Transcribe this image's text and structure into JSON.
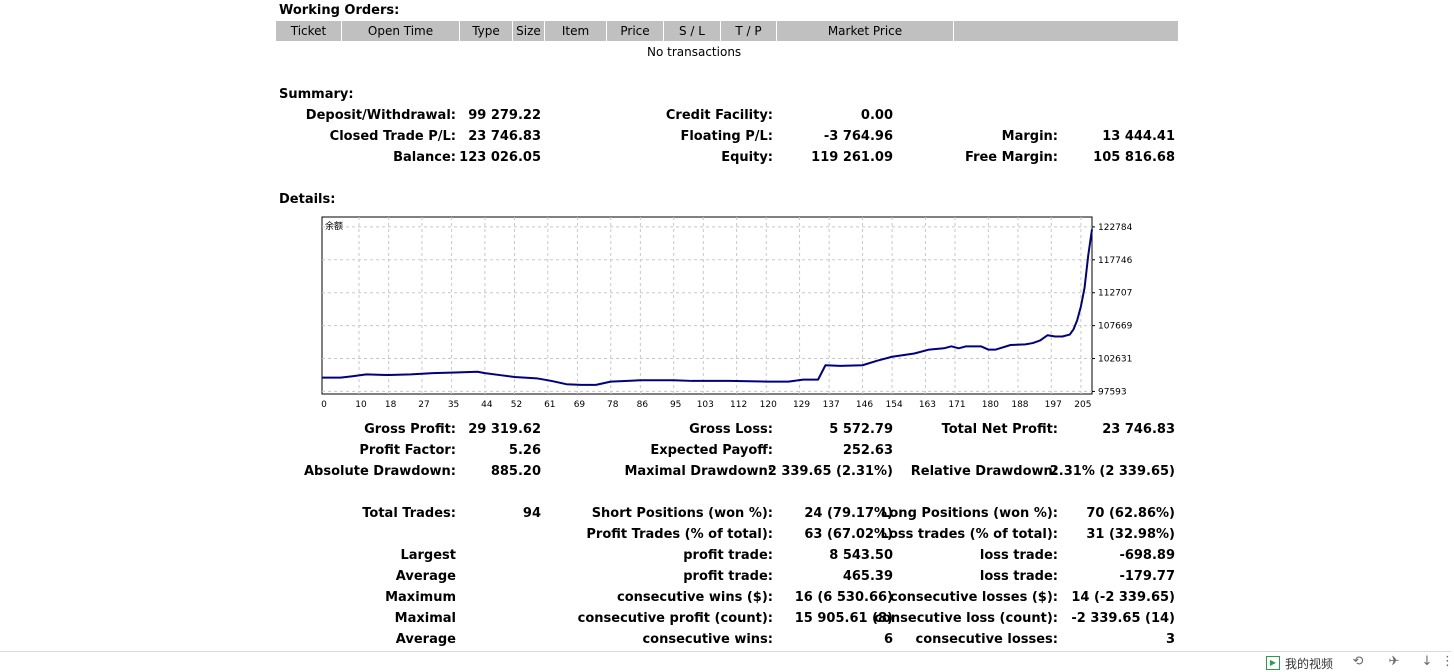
{
  "working_orders": {
    "heading": "Working Orders:",
    "columns": [
      "Ticket",
      "Open Time",
      "Type",
      "Size",
      "Item",
      "Price",
      "S / L",
      "T / P",
      "Market Price",
      ""
    ],
    "empty_message": "No transactions"
  },
  "summary": {
    "heading": "Summary:",
    "rows": [
      [
        {
          "label": "Deposit/Withdrawal:",
          "value": "99 279.22"
        },
        {
          "label": "Credit Facility:",
          "value": "0.00"
        },
        {
          "label": "",
          "value": ""
        }
      ],
      [
        {
          "label": "Closed Trade P/L:",
          "value": "23 746.83"
        },
        {
          "label": "Floating P/L:",
          "value": "-3 764.96"
        },
        {
          "label": "Margin:",
          "value": "13 444.41"
        }
      ],
      [
        {
          "label": "Balance:",
          "value": "123 026.05"
        },
        {
          "label": "Equity:",
          "value": "119 261.09"
        },
        {
          "label": "Free Margin:",
          "value": "105 816.68"
        }
      ]
    ]
  },
  "details": {
    "heading": "Details:",
    "rows": [
      [
        {
          "label": "Gross Profit:",
          "value": "29 319.62"
        },
        {
          "label": "Gross Loss:",
          "value": "5 572.79"
        },
        {
          "label": "Total Net Profit:",
          "value": "23 746.83"
        }
      ],
      [
        {
          "label": "Profit Factor:",
          "value": "5.26"
        },
        {
          "label": "Expected Payoff:",
          "value": "252.63"
        },
        {
          "label": "",
          "value": ""
        }
      ],
      [
        {
          "label": "Absolute Drawdown:",
          "value": "885.20"
        },
        {
          "label": "Maximal Drawdown:",
          "value": "2 339.65 (2.31%)"
        },
        {
          "label": "Relative Drawdown:",
          "value": "2.31% (2 339.65)"
        }
      ],
      [
        {
          "label": "Total Trades:",
          "value": "94"
        },
        {
          "label": "Short Positions (won %):",
          "value": "24 (79.17%)"
        },
        {
          "label": "Long Positions (won %):",
          "value": "70 (62.86%)"
        }
      ],
      [
        {
          "label": "",
          "value": ""
        },
        {
          "label": "Profit Trades (% of total):",
          "value": "63 (67.02%)"
        },
        {
          "label": "Loss trades (% of total):",
          "value": "31 (32.98%)"
        }
      ],
      [
        {
          "label": "Largest",
          "value": ""
        },
        {
          "label": "profit trade:",
          "value": "8 543.50"
        },
        {
          "label": "loss trade:",
          "value": "-698.89"
        }
      ],
      [
        {
          "label": "Average",
          "value": ""
        },
        {
          "label": "profit trade:",
          "value": "465.39"
        },
        {
          "label": "loss trade:",
          "value": "-179.77"
        }
      ],
      [
        {
          "label": "Maximum",
          "value": ""
        },
        {
          "label": "consecutive wins ($):",
          "value": "16 (6 530.66)"
        },
        {
          "label": "consecutive losses ($):",
          "value": "14 (-2 339.65)"
        }
      ],
      [
        {
          "label": "Maximal",
          "value": ""
        },
        {
          "label": "consecutive profit (count):",
          "value": "15 905.61 (8)"
        },
        {
          "label": "consecutive loss (count):",
          "value": "-2 339.65 (14)"
        }
      ],
      [
        {
          "label": "Average",
          "value": ""
        },
        {
          "label": "consecutive wins:",
          "value": "6"
        },
        {
          "label": "consecutive losses:",
          "value": "3"
        }
      ]
    ]
  },
  "chart_data": {
    "type": "line",
    "title": "余额",
    "x_ticks": [
      0,
      10,
      18,
      27,
      35,
      44,
      52,
      61,
      69,
      78,
      86,
      95,
      103,
      112,
      120,
      129,
      137,
      146,
      154,
      163,
      171,
      180,
      188,
      197,
      205
    ],
    "y_ticks": [
      97593,
      102631,
      107669,
      112707,
      117746,
      122784
    ],
    "xlim": [
      0,
      208
    ],
    "ylim": [
      97200,
      124300
    ],
    "grid": true,
    "line_color": "#000080",
    "series": [
      {
        "x": [
          0,
          5,
          8,
          12,
          18,
          24,
          30,
          36,
          42,
          44,
          48,
          52,
          58,
          62,
          66,
          70,
          74,
          78,
          86,
          95,
          100,
          110,
          120,
          126,
          130,
          134,
          136,
          140,
          146,
          150,
          154,
          160,
          164,
          168,
          170,
          172,
          174,
          178,
          180,
          182,
          186,
          190,
          192,
          194,
          196,
          198,
          200,
          202,
          203,
          204,
          205,
          206,
          207,
          208
        ],
        "y": [
          99700,
          99700,
          99900,
          100200,
          100100,
          100200,
          100400,
          100500,
          100600,
          100400,
          100100,
          99800,
          99600,
          99200,
          98700,
          98600,
          98600,
          99100,
          99300,
          99300,
          99200,
          99200,
          99100,
          99100,
          99400,
          99400,
          101600,
          101500,
          101600,
          102300,
          102900,
          103400,
          104000,
          104200,
          104500,
          104200,
          104500,
          104500,
          104000,
          104000,
          104700,
          104800,
          105000,
          105400,
          106200,
          106000,
          106000,
          106300,
          107100,
          108500,
          110600,
          113500,
          118500,
          122400
        ]
      }
    ]
  },
  "taskbar": {
    "video_label": "我的视频",
    "icons": [
      "video-play-icon",
      "refresh-icon",
      "pin-icon",
      "download-arrow-icon",
      "more-icon"
    ]
  }
}
